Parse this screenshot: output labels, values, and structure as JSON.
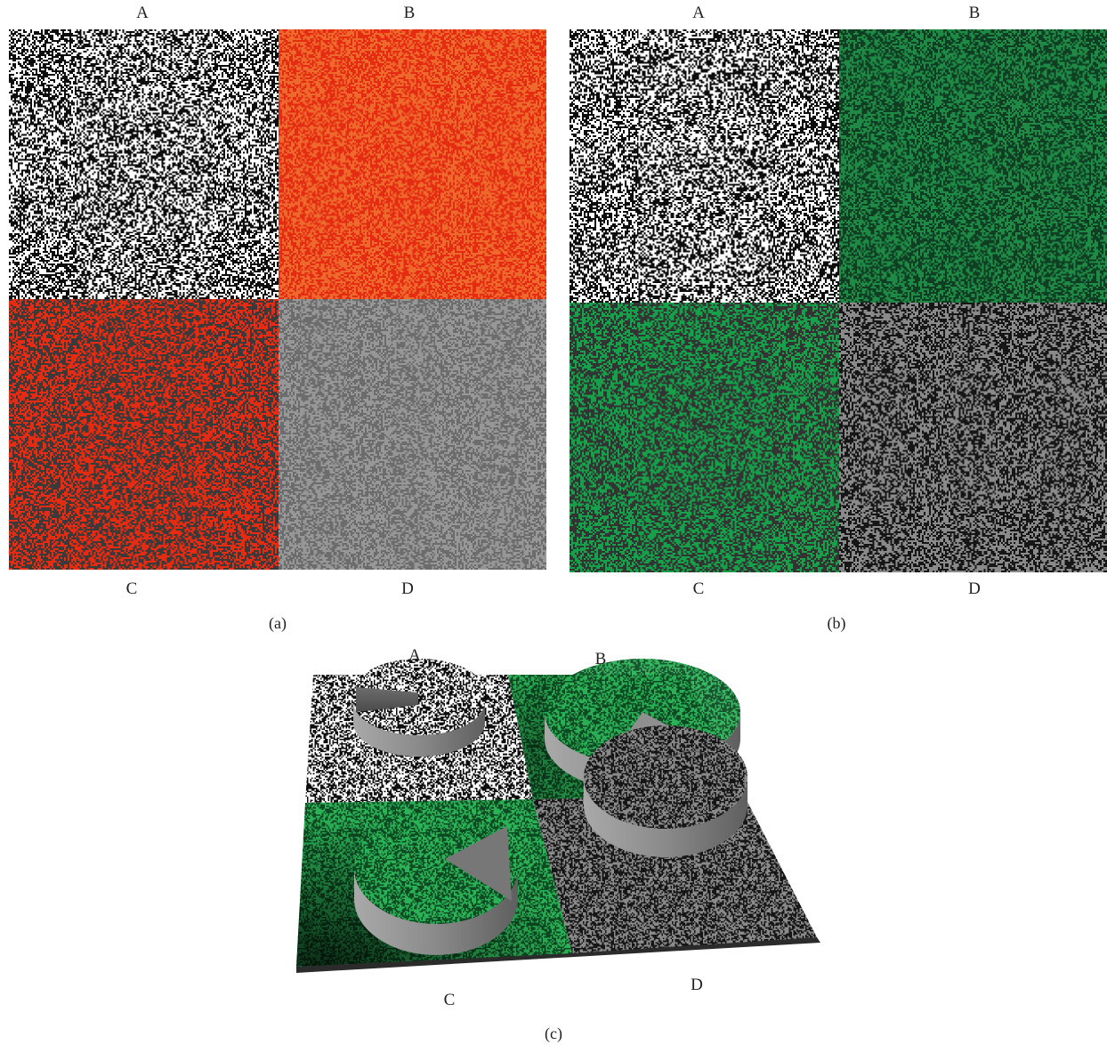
{
  "figure": {
    "panel_a": {
      "caption": "(a)",
      "labels": {
        "a": "A",
        "b": "B",
        "c": "C",
        "d": "D"
      },
      "colors": {
        "a": [
          "#0d0d0d",
          "#ffffff"
        ],
        "b": [
          "#e52b12",
          "#ee6a2c"
        ],
        "c": [
          "#3a3a3a",
          "#e52b12"
        ],
        "d": [
          "#979797",
          "#6c6c6c"
        ]
      }
    },
    "panel_b": {
      "caption": "(b)",
      "labels": {
        "a": "A",
        "b": "B",
        "c": "C",
        "d": "D"
      },
      "colors": {
        "a": [
          "#0d0d0d",
          "#ffffff"
        ],
        "b": [
          "#0f3e23",
          "#1f8a45"
        ],
        "c": [
          "#333333",
          "#16a04a"
        ],
        "d": [
          "#161616",
          "#8a8a8a"
        ]
      }
    },
    "panel_c": {
      "caption": "(c)",
      "labels": {
        "a": "A",
        "b": "B",
        "c": "C",
        "d": "D"
      },
      "colors": {
        "green_dark": "#0d4a22",
        "green_light": "#2bb257",
        "cylinder_side": "#8c8c8c",
        "cylinder_shadow": "#5e5e5e"
      }
    }
  }
}
